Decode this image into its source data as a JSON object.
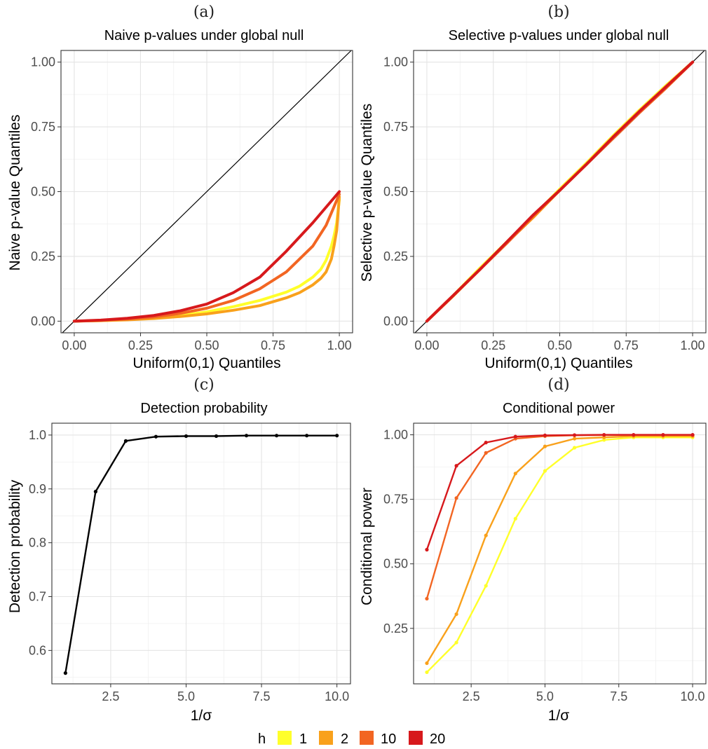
{
  "chart_data": [
    {
      "panel": "(a)",
      "type": "line",
      "title": "Naive p-values under global null",
      "xlabel": "Uniform(0,1) Quantiles",
      "ylabel": "Naive p-value Quantiles",
      "xlim": [
        -0.05,
        1.05
      ],
      "ylim": [
        -0.045,
        1.045
      ],
      "xticks": [
        0,
        0.25,
        0.5,
        0.75,
        1.0
      ],
      "xtick_labels": [
        "0.00",
        "0.25",
        "0.50",
        "0.75",
        "1.00"
      ],
      "yticks": [
        0,
        0.25,
        0.5,
        0.75,
        1.0
      ],
      "ytick_labels": [
        "0.00",
        "0.25",
        "0.50",
        "0.75",
        "1.00"
      ],
      "reference_line": "y = x",
      "grid": true,
      "series": [
        {
          "name": "1",
          "color": "#FFFF2A",
          "x": [
            0,
            0.1,
            0.2,
            0.3,
            0.4,
            0.5,
            0.6,
            0.7,
            0.8,
            0.85,
            0.9,
            0.93,
            0.95,
            0.97,
            0.98,
            0.99,
            1.0
          ],
          "y": [
            0,
            0.002,
            0.006,
            0.012,
            0.022,
            0.036,
            0.056,
            0.08,
            0.112,
            0.135,
            0.17,
            0.2,
            0.235,
            0.29,
            0.33,
            0.38,
            0.47
          ]
        },
        {
          "name": "2",
          "color": "#F9A11B",
          "x": [
            0,
            0.1,
            0.2,
            0.3,
            0.4,
            0.5,
            0.6,
            0.7,
            0.8,
            0.85,
            0.9,
            0.93,
            0.95,
            0.97,
            0.98,
            0.99,
            1.0
          ],
          "y": [
            0,
            0.002,
            0.005,
            0.01,
            0.018,
            0.028,
            0.042,
            0.06,
            0.09,
            0.11,
            0.14,
            0.165,
            0.19,
            0.24,
            0.29,
            0.35,
            0.48
          ]
        },
        {
          "name": "10",
          "color": "#F26522",
          "x": [
            0,
            0.1,
            0.2,
            0.3,
            0.4,
            0.5,
            0.6,
            0.7,
            0.8,
            0.9,
            0.95,
            1.0
          ],
          "y": [
            0,
            0.003,
            0.008,
            0.016,
            0.03,
            0.05,
            0.08,
            0.125,
            0.19,
            0.29,
            0.37,
            0.49
          ]
        },
        {
          "name": "20",
          "color": "#D7191C",
          "x": [
            0,
            0.1,
            0.2,
            0.3,
            0.4,
            0.5,
            0.6,
            0.7,
            0.8,
            0.9,
            1.0
          ],
          "y": [
            0,
            0.004,
            0.011,
            0.022,
            0.04,
            0.066,
            0.11,
            0.17,
            0.27,
            0.38,
            0.5
          ]
        }
      ]
    },
    {
      "panel": "(b)",
      "type": "line",
      "title": "Selective p-values under global null",
      "xlabel": "Uniform(0,1) Quantiles",
      "ylabel": "Selective p-value Quantiles",
      "xlim": [
        -0.05,
        1.05
      ],
      "ylim": [
        -0.045,
        1.045
      ],
      "xticks": [
        0,
        0.25,
        0.5,
        0.75,
        1.0
      ],
      "xtick_labels": [
        "0.00",
        "0.25",
        "0.50",
        "0.75",
        "1.00"
      ],
      "yticks": [
        0,
        0.25,
        0.5,
        0.75,
        1.0
      ],
      "ytick_labels": [
        "0.00",
        "0.25",
        "0.50",
        "0.75",
        "1.00"
      ],
      "reference_line": "y = x",
      "grid": true,
      "series": [
        {
          "name": "1",
          "color": "#FFFF2A",
          "x": [
            0,
            0.1,
            0.2,
            0.3,
            0.4,
            0.5,
            0.6,
            0.7,
            0.8,
            0.9,
            1.0
          ],
          "y": [
            0,
            0.1,
            0.205,
            0.305,
            0.405,
            0.51,
            0.61,
            0.715,
            0.815,
            0.91,
            1.0
          ]
        },
        {
          "name": "2",
          "color": "#F9A11B",
          "x": [
            0,
            0.1,
            0.2,
            0.3,
            0.4,
            0.5,
            0.6,
            0.7,
            0.8,
            0.9,
            1.0
          ],
          "y": [
            0,
            0.098,
            0.2,
            0.302,
            0.4,
            0.505,
            0.605,
            0.71,
            0.81,
            0.905,
            1.0
          ]
        },
        {
          "name": "10",
          "color": "#F26522",
          "x": [
            0,
            0.1,
            0.2,
            0.3,
            0.4,
            0.5,
            0.6,
            0.7,
            0.8,
            0.9,
            1.0
          ],
          "y": [
            0,
            0.1,
            0.2,
            0.3,
            0.405,
            0.505,
            0.605,
            0.705,
            0.805,
            0.9,
            1.0
          ]
        },
        {
          "name": "20",
          "color": "#D7191C",
          "x": [
            0,
            0.1,
            0.2,
            0.3,
            0.4,
            0.5,
            0.6,
            0.7,
            0.8,
            0.9,
            1.0
          ],
          "y": [
            0,
            0.1,
            0.2,
            0.305,
            0.41,
            0.505,
            0.605,
            0.71,
            0.81,
            0.905,
            1.0
          ]
        }
      ]
    },
    {
      "panel": "(c)",
      "type": "line",
      "title": "Detection probability",
      "xlabel": "1/σ",
      "ylabel": "Detection probability",
      "xlim": [
        0.55,
        10.45
      ],
      "ylim": [
        0.538,
        1.022
      ],
      "xticks": [
        2.5,
        5.0,
        7.5,
        10.0
      ],
      "xtick_labels": [
        "2.5",
        "5.0",
        "7.5",
        "10.0"
      ],
      "yticks": [
        0.6,
        0.7,
        0.8,
        0.9,
        1.0
      ],
      "ytick_labels": [
        "0.6",
        "0.7",
        "0.8",
        "0.9",
        "1.0"
      ],
      "grid": true,
      "series": [
        {
          "color": "#000000",
          "x": [
            1,
            2,
            3,
            4,
            5,
            6,
            7,
            8,
            9,
            10
          ],
          "y": [
            0.558,
            0.895,
            0.989,
            0.997,
            0.998,
            0.998,
            0.999,
            0.999,
            0.999,
            0.999
          ]
        }
      ]
    },
    {
      "panel": "(d)",
      "type": "line",
      "title": "Conditional power",
      "xlabel": "1/σ",
      "ylabel": "Conditional power",
      "xlim": [
        0.55,
        10.45
      ],
      "ylim": [
        0.035,
        1.045
      ],
      "xticks": [
        2.5,
        5.0,
        7.5,
        10.0
      ],
      "xtick_labels": [
        "2.5",
        "5.0",
        "7.5",
        "10.0"
      ],
      "yticks": [
        0.25,
        0.5,
        0.75,
        1.0
      ],
      "ytick_labels": [
        "0.25",
        "0.50",
        "0.75",
        "1.00"
      ],
      "grid": true,
      "series": [
        {
          "name": "1",
          "color": "#FFFF2A",
          "x": [
            1,
            2,
            3,
            4,
            5,
            6,
            7,
            8,
            9,
            10
          ],
          "y": [
            0.08,
            0.195,
            0.415,
            0.675,
            0.86,
            0.95,
            0.98,
            0.99,
            0.99,
            0.99
          ]
        },
        {
          "name": "2",
          "color": "#F9A11B",
          "x": [
            1,
            2,
            3,
            4,
            5,
            6,
            7,
            8,
            9,
            10
          ],
          "y": [
            0.115,
            0.305,
            0.61,
            0.85,
            0.955,
            0.985,
            0.99,
            0.995,
            0.995,
            0.995
          ]
        },
        {
          "name": "10",
          "color": "#F26522",
          "x": [
            1,
            2,
            3,
            4,
            5,
            6,
            7,
            8,
            9,
            10
          ],
          "y": [
            0.365,
            0.755,
            0.93,
            0.985,
            0.995,
            0.998,
            0.999,
            0.999,
            0.999,
            0.999
          ]
        },
        {
          "name": "20",
          "color": "#D7191C",
          "x": [
            1,
            2,
            3,
            4,
            5,
            6,
            7,
            8,
            9,
            10
          ],
          "y": [
            0.555,
            0.88,
            0.97,
            0.993,
            0.998,
            0.999,
            1.0,
            1.0,
            1.0,
            1.0
          ]
        }
      ]
    }
  ],
  "legend": {
    "title": "h",
    "position": "bottom",
    "items": [
      {
        "label": "1",
        "color": "#FFFF2A"
      },
      {
        "label": "2",
        "color": "#F9A11B"
      },
      {
        "label": "10",
        "color": "#F26522"
      },
      {
        "label": "20",
        "color": "#D7191C"
      }
    ]
  }
}
